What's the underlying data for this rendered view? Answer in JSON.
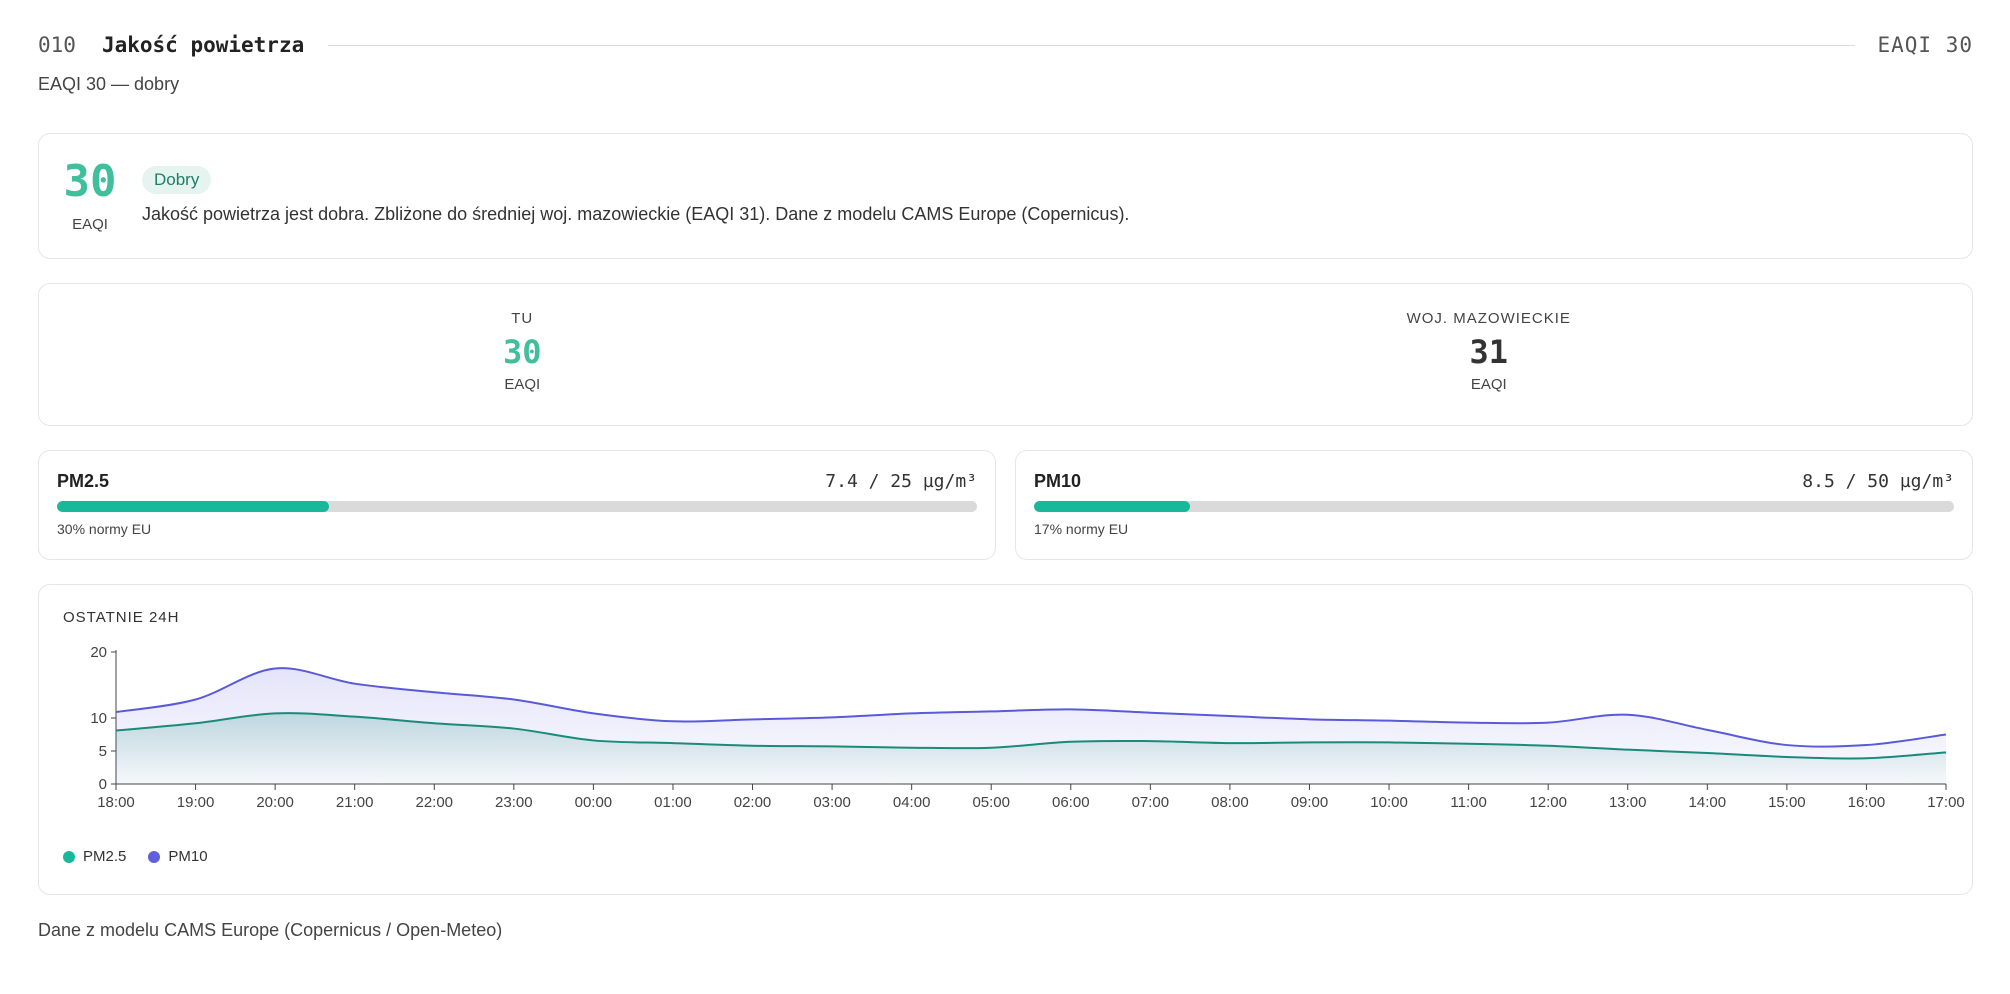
{
  "header": {
    "number": "010",
    "title": "Jakość powietrza",
    "right_label": "EAQI 30"
  },
  "subtitle": "EAQI 30 — dobry",
  "summary": {
    "value": "30",
    "unit": "EAQI",
    "badge": "Dobry",
    "description": "Jakość powietrza jest dobra. Zbliżone do średniej woj. mazowieckie (EAQI 31). Dane z modelu CAMS Europe (Copernicus)."
  },
  "comparison": {
    "local": {
      "label": "TU",
      "value": "30",
      "unit": "EAQI",
      "color": "#3fbf9c"
    },
    "region": {
      "label": "WOJ. MAZOWIECKIE",
      "value": "31",
      "unit": "EAQI",
      "color": "#333333"
    }
  },
  "pollutants": [
    {
      "name": "PM2.5",
      "reading": "7.4 / 25 µg/m³",
      "fraction": 0.296,
      "percent_label": "30% normy EU",
      "color": "#1ab89a"
    },
    {
      "name": "PM10",
      "reading": "8.5 / 50 µg/m³",
      "fraction": 0.17,
      "percent_label": "17% normy EU",
      "color": "#1ab89a"
    }
  ],
  "chart_data": {
    "type": "area",
    "title": "OSTATNIE 24H",
    "x": [
      "18:00",
      "19:00",
      "20:00",
      "21:00",
      "22:00",
      "23:00",
      "00:00",
      "01:00",
      "02:00",
      "03:00",
      "04:00",
      "05:00",
      "06:00",
      "07:00",
      "08:00",
      "09:00",
      "10:00",
      "11:00",
      "12:00",
      "13:00",
      "14:00",
      "15:00",
      "16:00",
      "17:00"
    ],
    "y_ticks": [
      0,
      5,
      10,
      20
    ],
    "ylim": [
      0,
      20
    ],
    "series": [
      {
        "name": "PM2.5",
        "color": "#1a8a7a",
        "dot_color": "#1ab89a",
        "values": [
          8.1,
          9.2,
          10.7,
          10.2,
          9.2,
          8.4,
          6.6,
          6.2,
          5.8,
          5.7,
          5.5,
          5.5,
          6.4,
          6.5,
          6.2,
          6.3,
          6.3,
          6.1,
          5.8,
          5.2,
          4.7,
          4.1,
          3.9,
          4.8
        ]
      },
      {
        "name": "PM10",
        "color": "#5a5ad8",
        "dot_color": "#6060dd",
        "values": [
          10.9,
          12.8,
          17.5,
          15.2,
          13.9,
          12.8,
          10.7,
          9.5,
          9.8,
          10.1,
          10.7,
          11.0,
          11.3,
          10.8,
          10.3,
          9.8,
          9.6,
          9.3,
          9.3,
          10.5,
          8.2,
          5.9,
          5.9,
          7.5
        ]
      }
    ]
  },
  "footer": "Dane z modelu CAMS Europe (Copernicus / Open-Meteo)"
}
